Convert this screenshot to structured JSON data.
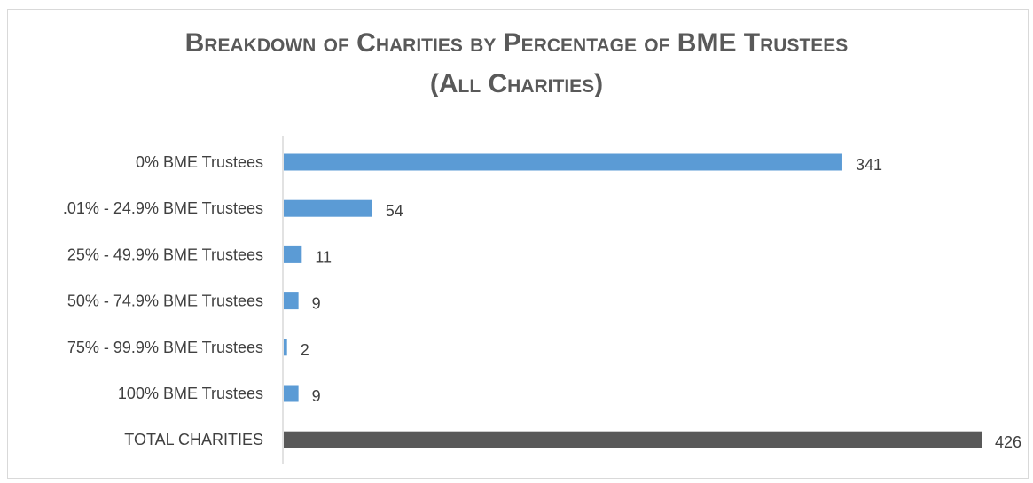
{
  "chart_data": {
    "type": "bar",
    "orientation": "horizontal",
    "title_line1": "Breakdown of Charities by Percentage of BME Trustees",
    "title_line2": "(All Charities)",
    "categories": [
      "0% BME Trustees",
      ".01%  - 24.9% BME Trustees",
      "25% - 49.9% BME Trustees",
      "50% - 74.9% BME Trustees",
      "75%  - 99.9% BME Trustees",
      "100% BME Trustees",
      "TOTAL CHARITIES"
    ],
    "values": [
      341,
      54,
      11,
      9,
      2,
      9,
      426
    ],
    "value_labels": [
      "341",
      "54",
      "11",
      "9",
      "2",
      "9",
      "426"
    ],
    "bar_colors": [
      "#5b9bd5",
      "#5b9bd5",
      "#5b9bd5",
      "#5b9bd5",
      "#5b9bd5",
      "#5b9bd5",
      "#595959"
    ],
    "xlim": [
      0,
      426
    ],
    "grid": false,
    "legend": "none"
  }
}
